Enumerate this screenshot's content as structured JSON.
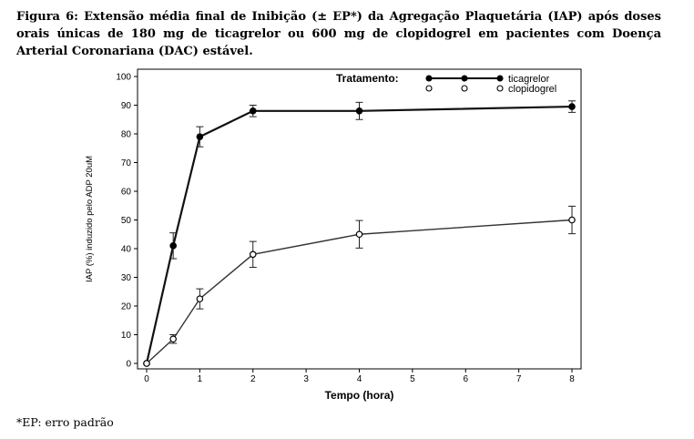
{
  "caption": "Figura 6: Extensão média final de Inibição (± EP*) da Agregação Plaquetária (IAP) após doses orais únicas de 180 mg de ticagrelor ou 600 mg de clopidogrel em pacientes com Doença Arterial Coronariana (DAC) estável.",
  "footnote": "*EP: erro padrão",
  "chart_data": {
    "type": "line",
    "xlabel": "Tempo (hora)",
    "ylabel": "IAP (%) induzido pelo ADP 20uM",
    "xlim": [
      0,
      8
    ],
    "ylim": [
      0,
      100
    ],
    "xticks": [
      0,
      1,
      2,
      3,
      4,
      5,
      6,
      7,
      8
    ],
    "yticks": [
      0,
      10,
      20,
      30,
      40,
      50,
      60,
      70,
      80,
      90,
      100
    ],
    "grid": false,
    "legend": {
      "title": "Tratamento:",
      "placement": "top-right"
    },
    "series": [
      {
        "name": "ticagrelor",
        "marker": "filled-circle",
        "x": [
          0,
          0.5,
          1,
          2,
          4,
          8
        ],
        "y": [
          0,
          41,
          79,
          88,
          88,
          89.5
        ],
        "err": [
          0,
          4.5,
          3.5,
          2,
          3,
          2
        ]
      },
      {
        "name": "clopidogrel",
        "marker": "open-circle",
        "x": [
          0,
          0.5,
          1,
          2,
          4,
          8
        ],
        "y": [
          0,
          8.5,
          22.5,
          38,
          45,
          50
        ],
        "err": [
          0,
          1.5,
          3.5,
          4.5,
          4.8,
          4.8
        ]
      }
    ]
  }
}
